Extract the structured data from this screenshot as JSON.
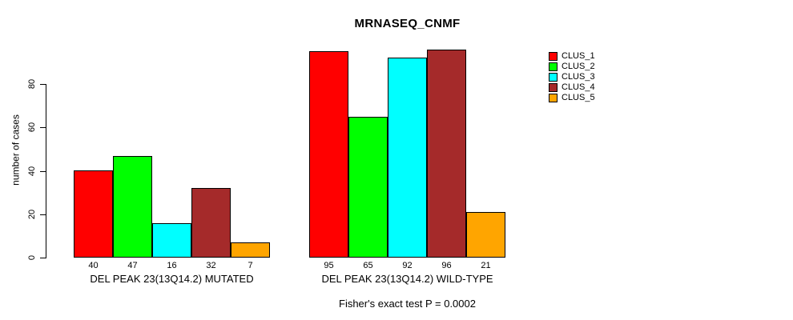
{
  "figure": {
    "title": "MRNASEQ_CNMF",
    "caption": "Fisher's exact test P = 0.0002"
  },
  "chart_data": {
    "type": "bar",
    "title": "MRNASEQ_CNMF",
    "xlabel": "",
    "ylabel": "number of cases",
    "ylim": [
      0,
      100
    ],
    "yticks": [
      0,
      20,
      40,
      60,
      80
    ],
    "grid": false,
    "legend_position": "top-right",
    "bar_border_color": "#000000",
    "categories": [
      "DEL PEAK 23(13Q14.2) MUTATED",
      "DEL PEAK 23(13Q14.2) WILD-TYPE"
    ],
    "series": [
      {
        "name": "CLUS_1",
        "color": "#FF0000",
        "values": [
          40,
          95
        ]
      },
      {
        "name": "CLUS_2",
        "color": "#00FF00",
        "values": [
          47,
          65
        ]
      },
      {
        "name": "CLUS_3",
        "color": "#00FFFF",
        "values": [
          16,
          92
        ]
      },
      {
        "name": "CLUS_4",
        "color": "#A52A2A",
        "values": [
          32,
          96
        ]
      },
      {
        "name": "CLUS_5",
        "color": "#FFA500",
        "values": [
          7,
          21
        ]
      }
    ],
    "bar_value_labels": [
      [
        40,
        47,
        16,
        32,
        7
      ],
      [
        95,
        65,
        92,
        96,
        21
      ]
    ],
    "annotation": "Fisher's exact test P = 0.0002"
  }
}
